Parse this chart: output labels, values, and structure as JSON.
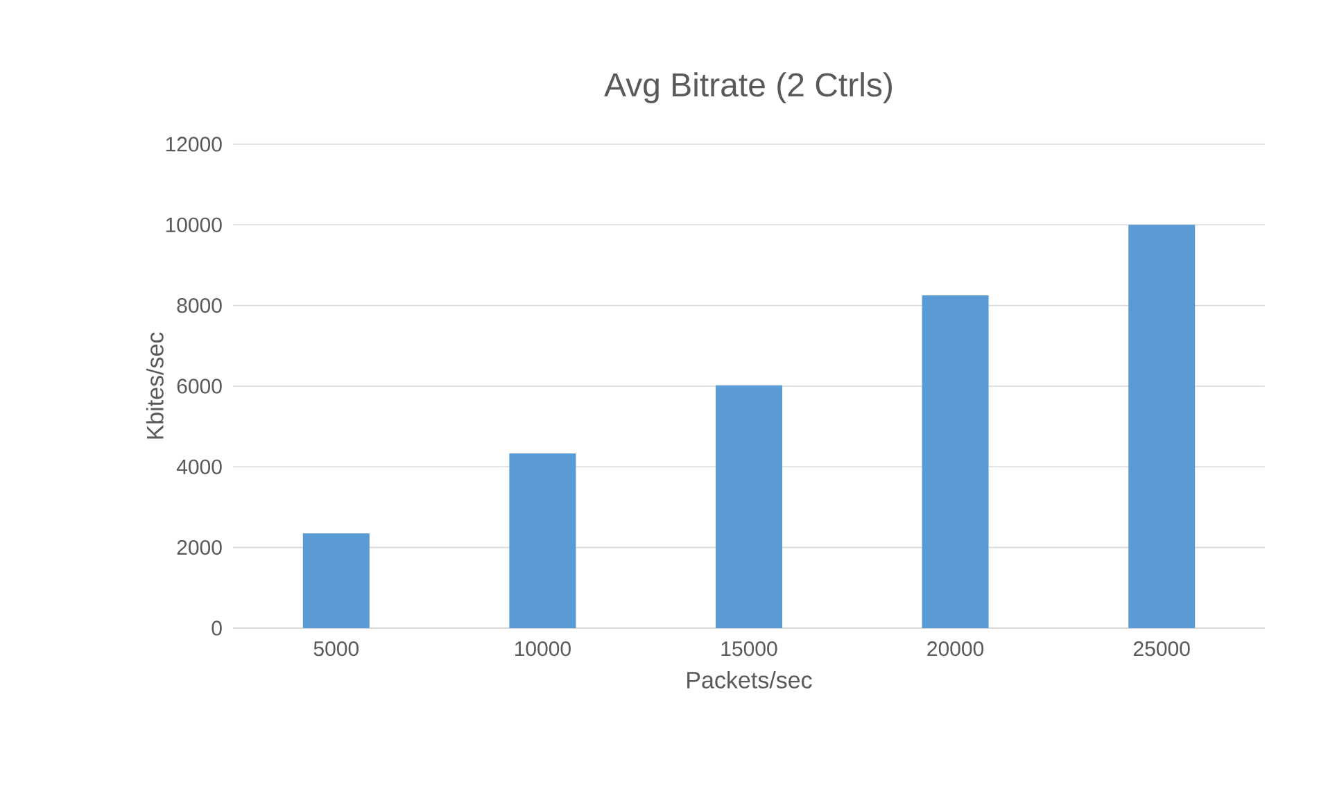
{
  "chart_data": {
    "type": "bar",
    "title": "Avg Bitrate (2 Ctrls)",
    "xlabel": "Packets/sec",
    "ylabel": "Kbites/sec",
    "categories": [
      "5000",
      "10000",
      "15000",
      "20000",
      "25000"
    ],
    "series": [
      {
        "color": "#5b9bd5",
        "values": [
          2350,
          4330,
          6020,
          8250,
          10000
        ]
      }
    ],
    "ylim": [
      0,
      12000
    ],
    "yticks": [
      0,
      2000,
      4000,
      6000,
      8000,
      10000,
      12000
    ],
    "grid": "y"
  }
}
